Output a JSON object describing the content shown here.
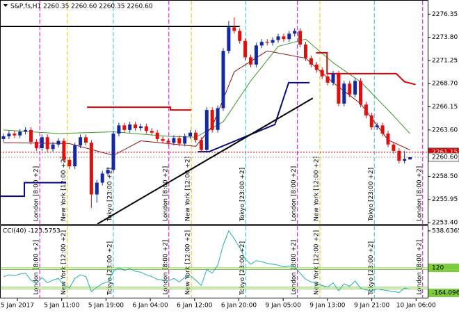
{
  "time_labels": [
    "5 Jan 2017",
    "5 Jan 11:00",
    "5 Jan 19:00",
    "6 Jan 04:00",
    "6 Jan 12:00",
    "6 Jan 20:00",
    "9 Jan 05:00",
    "9 Jan 13:00",
    "9 Jan 21:00",
    "10 Jan 06:00"
  ],
  "sessions": [
    {
      "label": "London [8:00 +2]",
      "x": 6.6,
      "color": "#e000e0"
    },
    {
      "label": "New York [12:00 +2]",
      "x": 11.6,
      "color": "#e8c800"
    },
    {
      "label": "Tokyo [23:00 +2]",
      "x": 20,
      "color": "#20c8d8"
    },
    {
      "label": "London [8:00 +2]",
      "x": 30.1,
      "color": "#e000e0"
    },
    {
      "label": "New York [12:00 +2]",
      "x": 34.2,
      "color": "#e8c800"
    },
    {
      "label": "Tokyo [23:00 +2]",
      "x": 44.1,
      "color": "#20c8d8"
    },
    {
      "label": "London [8:00 +2]",
      "x": 53.5,
      "color": "#e000e0"
    },
    {
      "label": "New York [12:00 +2]",
      "x": 57.6,
      "color": "#e8c800"
    },
    {
      "label": "Tokyo [23:00 +2]",
      "x": 67.5,
      "color": "#20c8d8"
    },
    {
      "label": "London [8:00 +2]",
      "x": 76.3,
      "color": "#e000e0"
    }
  ],
  "chart_data": [
    {
      "type": "candlestick",
      "title": "S&P,fs,H1  2260.35 2260.60 2260.35 2260.60",
      "ylim": [
        2253.25,
        2277.83
      ],
      "yticks": [
        2276.35,
        {
          "value": 2273.8,
          "label": "2273.80"
        },
        2271.25,
        {
          "value": 2268.7,
          "label": "2268.70"
        },
        2266.15,
        {
          "value": 2263.6,
          "label": "2263.60"
        },
        {
          "value": 2258.5,
          "label": "2258.50"
        },
        2255.95,
        {
          "value": 2253.4,
          "label": "2253.40"
        }
      ],
      "up_color": "#1428a0",
      "down_color": "#e01010",
      "ohlc": [
        [
          2262.6,
          2263.2,
          2262.3,
          2262.9
        ],
        [
          2262.9,
          2263.5,
          2262.6,
          2263.2
        ],
        [
          2263.2,
          2263.5,
          2262.7,
          2263.0
        ],
        [
          2263.0,
          2263.7,
          2262.7,
          2263.4
        ],
        [
          2263.4,
          2263.9,
          2263.1,
          2263.6
        ],
        [
          2263.6,
          2263.9,
          2262.0,
          2262.3
        ],
        [
          2262.3,
          2262.6,
          2261.3,
          2261.6
        ],
        [
          2261.6,
          2263.1,
          2261.3,
          2262.8
        ],
        [
          2262.8,
          2263.1,
          2261.2,
          2261.5
        ],
        [
          2261.5,
          2262.3,
          2261.2,
          2262.0
        ],
        [
          2262.0,
          2262.7,
          2261.7,
          2262.4
        ],
        [
          2262.4,
          2262.7,
          2260.0,
          2260.3
        ],
        [
          2260.3,
          2260.6,
          2259.3,
          2259.6
        ],
        [
          2259.6,
          2262.2,
          2259.3,
          2261.9
        ],
        [
          2261.9,
          2263.1,
          2261.6,
          2262.8
        ],
        [
          2262.8,
          2263.1,
          2261.9,
          2262.2
        ],
        [
          2262.2,
          2262.5,
          2255.0,
          2256.5
        ],
        [
          2256.5,
          2258.1,
          2255.6,
          2257.8
        ],
        [
          2257.8,
          2259.1,
          2257.5,
          2258.8
        ],
        [
          2258.8,
          2259.5,
          2258.5,
          2259.2
        ],
        [
          2259.2,
          2263.5,
          2258.9,
          2263.2
        ],
        [
          2263.2,
          2264.4,
          2262.9,
          2264.1
        ],
        [
          2264.1,
          2264.4,
          2263.3,
          2263.6
        ],
        [
          2263.6,
          2264.5,
          2263.3,
          2264.2
        ],
        [
          2264.2,
          2264.5,
          2263.5,
          2263.8
        ],
        [
          2263.8,
          2264.3,
          2263.5,
          2264.0
        ],
        [
          2264.0,
          2264.3,
          2263.2,
          2263.5
        ],
        [
          2263.5,
          2263.8,
          2263.0,
          2263.3
        ],
        [
          2263.3,
          2263.6,
          2262.3,
          2262.6
        ],
        [
          2262.6,
          2262.9,
          2262.1,
          2262.4
        ],
        [
          2262.4,
          2262.7,
          2261.9,
          2262.2
        ],
        [
          2262.2,
          2263.0,
          2261.9,
          2262.7
        ],
        [
          2262.7,
          2263.0,
          2261.8,
          2262.1
        ],
        [
          2262.1,
          2263.2,
          2261.8,
          2262.9
        ],
        [
          2262.9,
          2263.6,
          2262.6,
          2263.3
        ],
        [
          2263.3,
          2263.6,
          2262.2,
          2262.5
        ],
        [
          2262.5,
          2262.8,
          2261.1,
          2261.4
        ],
        [
          2261.4,
          2266.1,
          2261.1,
          2265.8
        ],
        [
          2265.8,
          2266.1,
          2263.3,
          2263.6
        ],
        [
          2263.6,
          2266.3,
          2263.3,
          2266.0
        ],
        [
          2266.0,
          2272.6,
          2265.7,
          2272.3
        ],
        [
          2272.3,
          2275.6,
          2272.0,
          2274.9
        ],
        [
          2274.9,
          2276.0,
          2274.2,
          2274.5
        ],
        [
          2274.5,
          2274.8,
          2273.1,
          2273.4
        ],
        [
          2273.4,
          2273.7,
          2271.3,
          2271.6
        ],
        [
          2271.6,
          2271.9,
          2270.5,
          2270.8
        ],
        [
          2270.8,
          2273.2,
          2270.5,
          2272.9
        ],
        [
          2272.9,
          2273.6,
          2272.6,
          2273.3
        ],
        [
          2273.3,
          2273.6,
          2272.9,
          2273.2
        ],
        [
          2273.2,
          2273.8,
          2272.9,
          2273.5
        ],
        [
          2273.5,
          2274.2,
          2273.2,
          2273.9
        ],
        [
          2273.9,
          2274.2,
          2273.3,
          2273.6
        ],
        [
          2273.6,
          2274.5,
          2273.3,
          2274.2
        ],
        [
          2274.2,
          2274.8,
          2273.9,
          2274.5
        ],
        [
          2274.5,
          2274.8,
          2272.7,
          2273.0
        ],
        [
          2273.0,
          2273.3,
          2271.2,
          2271.5
        ],
        [
          2271.5,
          2271.8,
          2270.5,
          2270.8
        ],
        [
          2270.8,
          2271.1,
          2269.9,
          2270.2
        ],
        [
          2270.2,
          2270.5,
          2269.2,
          2269.5
        ],
        [
          2269.5,
          2269.8,
          2268.5,
          2268.8
        ],
        [
          2268.8,
          2270.1,
          2268.5,
          2269.8
        ],
        [
          2269.8,
          2270.1,
          2266.2,
          2266.5
        ],
        [
          2266.5,
          2269.0,
          2266.2,
          2268.7
        ],
        [
          2268.7,
          2269.0,
          2267.2,
          2267.5
        ],
        [
          2267.5,
          2269.3,
          2267.2,
          2269.0
        ],
        [
          2269.0,
          2269.3,
          2266.1,
          2266.4
        ],
        [
          2266.4,
          2266.7,
          2264.9,
          2265.2
        ],
        [
          2265.2,
          2265.5,
          2263.6,
          2263.9
        ],
        [
          2263.9,
          2264.4,
          2263.6,
          2264.1
        ],
        [
          2264.1,
          2264.4,
          2262.9,
          2263.2
        ],
        [
          2263.2,
          2263.5,
          2261.7,
          2262.0
        ],
        [
          2262.0,
          2262.3,
          2261.0,
          2261.3
        ],
        [
          2261.3,
          2261.6,
          2259.9,
          2260.2
        ],
        [
          2260.2,
          2261.3,
          2259.9,
          2260.4
        ],
        [
          2260.35,
          2260.6,
          2260.35,
          2260.6
        ]
      ],
      "overlays": [
        {
          "color": "#3c9a28",
          "width": 1,
          "x": [
            0,
            10,
            20,
            30,
            35,
            40,
            45,
            50,
            55,
            60,
            65,
            70,
            74
          ],
          "values": [
            2263.6,
            2263.2,
            2263.4,
            2262.9,
            2262.8,
            2264.5,
            2269.0,
            2272.8,
            2273.6,
            2271.0,
            2268.9,
            2265.8,
            2263.2
          ]
        },
        {
          "color": "#8b1010",
          "width": 1,
          "x": [
            0,
            12,
            20,
            25,
            35,
            38,
            42,
            48,
            55,
            60,
            65,
            70,
            74
          ],
          "values": [
            2262.2,
            2262.1,
            2260.8,
            2262.4,
            2261.8,
            2264.0,
            2270.0,
            2272.3,
            2271.5,
            2268.8,
            2266.5,
            2262.5,
            2261.4
          ]
        },
        {
          "color": "#0a0a80",
          "width": 2,
          "x": [
            -0.6,
            3.8,
            3.8,
            11.4,
            20,
            35.4,
            37.4,
            49.4,
            51.9,
            55.7
          ],
          "values": [
            2256.3,
            2256.3,
            2257.8,
            2257.8,
            null,
            2261.2,
            2261.2,
            2264.2,
            2268.8,
            2268.8
          ]
        },
        {
          "color": "#e00000",
          "width": 2,
          "x": [
            15.2,
            30.4,
            30.4,
            34.2,
            45,
            56.9,
            58.9,
            58.9,
            71.5,
            73,
            75
          ],
          "values": [
            2266.1,
            2266.1,
            2265.8,
            2265.8,
            null,
            2272.1,
            2272.1,
            2269.8,
            2269.8,
            2268.9,
            2268.6
          ]
        },
        {
          "color": "#000000",
          "width": 2,
          "x": [
            -0.6,
            43
          ],
          "values": [
            2275.0,
            2275.0
          ]
        },
        {
          "color": "#000000",
          "width": 2,
          "x": [
            17.1,
            56.3
          ],
          "values": [
            2253.25,
            2267.1
          ]
        }
      ],
      "price_labels": [
        {
          "value": 2261.15,
          "color": "#e00000",
          "text_color": "#ffffff"
        },
        {
          "value": 2260.6,
          "label": "2260.60",
          "color": "#ffffff",
          "text_color": "#000000"
        }
      ]
    },
    {
      "type": "line",
      "title": "CCI(40) -123.5753",
      "ylim": [
        -219,
        593
      ],
      "yticks": [
        538.6365,
        120,
        -164.0961
      ],
      "color": "#20b2aa",
      "levels": [
        120,
        100,
        -100,
        -120
      ],
      "level_color": "#7fcc3f",
      "values": [
        20,
        40,
        30,
        50,
        60,
        -20,
        -60,
        10,
        -50,
        -20,
        0,
        -80,
        -110,
        0,
        40,
        20,
        -150,
        -100,
        -60,
        -40,
        80,
        120,
        90,
        110,
        80,
        70,
        40,
        20,
        -10,
        -20,
        -30,
        0,
        -40,
        10,
        30,
        -20,
        -80,
        100,
        60,
        150,
        380,
        538,
        450,
        350,
        220,
        160,
        200,
        190,
        170,
        160,
        150,
        130,
        140,
        130,
        60,
        -10,
        -40,
        -60,
        -80,
        -100,
        -50,
        -140,
        -60,
        -90,
        -30,
        -110,
        -130,
        -140,
        -120,
        -130,
        -140,
        -150,
        -160,
        -110,
        -123.5753
      ]
    }
  ]
}
